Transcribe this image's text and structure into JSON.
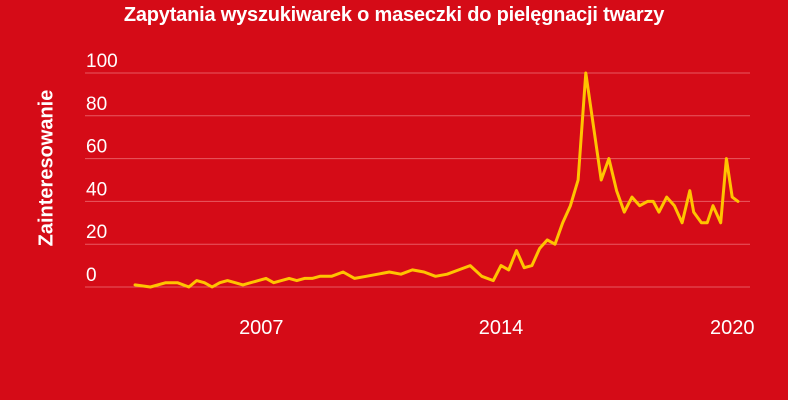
{
  "chart_data": {
    "type": "line",
    "title": "Zapytania wyszukiwarek o maseczki do pielęgnacji twarzy",
    "ylabel": "Zainteresowanie",
    "xlabel": "",
    "ylim": [
      0,
      100
    ],
    "yticks": [
      "100",
      "80",
      "60",
      "40",
      "20",
      "0"
    ],
    "xticks": [
      {
        "label": "2007",
        "year": 2007.0
      },
      {
        "label": "2014",
        "year": 2014.0
      },
      {
        "label": "2020",
        "year": 2020.0
      }
    ],
    "grid": true,
    "colors": {
      "background": "#d50b17",
      "line": "#ffc400",
      "grid": "#e85a62",
      "text": "#ffffff"
    },
    "series": [
      {
        "x": [
          2004.5,
          2004.9,
          2005.3,
          2005.6,
          2005.9,
          2006.1,
          2006.3,
          2006.5,
          2006.7,
          2006.9,
          2007.1,
          2007.3,
          2007.5,
          2007.7,
          2007.9,
          2008.1,
          2008.3,
          2008.5,
          2008.7,
          2008.9,
          2009.1,
          2009.3,
          2009.6,
          2009.9,
          2010.2,
          2010.5,
          2010.8,
          2011.1,
          2011.4,
          2011.7,
          2012.0,
          2012.3,
          2012.6,
          2012.9,
          2013.2,
          2013.5,
          2013.8,
          2014.0,
          2014.2,
          2014.4,
          2014.6,
          2014.8,
          2015.0,
          2015.2,
          2015.4,
          2015.6,
          2015.8,
          2016.0,
          2016.2,
          2016.4,
          2016.6,
          2016.8,
          2017.0,
          2017.2,
          2017.4,
          2017.6,
          2017.8,
          2017.95,
          2018.1,
          2018.3,
          2018.5,
          2018.7,
          2018.9,
          2019.0,
          2019.2,
          2019.35,
          2019.5,
          2019.7,
          2019.85,
          2020.0,
          2020.15
        ],
        "values": [
          1,
          0,
          2,
          2,
          0,
          3,
          2,
          0,
          2,
          3,
          2,
          1,
          2,
          3,
          4,
          2,
          3,
          4,
          3,
          4,
          4,
          5,
          5,
          7,
          4,
          5,
          6,
          7,
          6,
          8,
          7,
          5,
          6,
          8,
          10,
          5,
          3,
          10,
          8,
          17,
          9,
          10,
          18,
          22,
          20,
          30,
          38,
          50,
          100,
          75,
          50,
          60,
          45,
          35,
          42,
          38,
          40,
          40,
          35,
          42,
          38,
          30,
          45,
          35,
          30,
          30,
          38,
          30,
          60,
          42,
          40
        ]
      }
    ]
  }
}
